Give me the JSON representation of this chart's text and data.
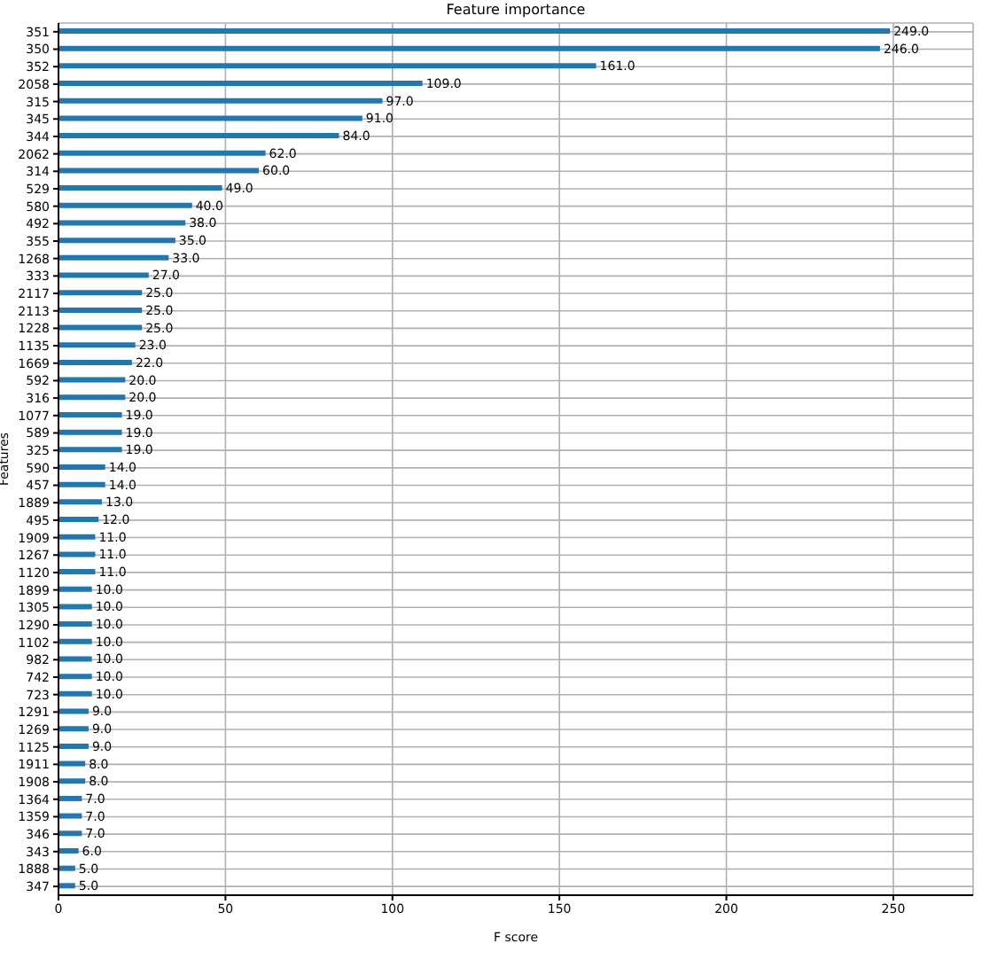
{
  "chart_data": {
    "type": "bar",
    "orientation": "horizontal",
    "title": "Feature importance",
    "xlabel": "F score",
    "ylabel": "Features",
    "categories": [
      "351",
      "350",
      "352",
      "2058",
      "315",
      "345",
      "344",
      "2062",
      "314",
      "529",
      "580",
      "492",
      "355",
      "1268",
      "333",
      "2117",
      "2113",
      "1228",
      "1135",
      "1669",
      "592",
      "316",
      "1077",
      "589",
      "325",
      "590",
      "457",
      "1889",
      "495",
      "1909",
      "1267",
      "1120",
      "1899",
      "1305",
      "1290",
      "1102",
      "982",
      "742",
      "723",
      "1291",
      "1269",
      "1125",
      "1911",
      "1908",
      "1364",
      "1359",
      "346",
      "343",
      "1888",
      "347"
    ],
    "values": [
      249,
      246,
      161,
      109,
      97,
      91,
      84,
      62,
      60,
      49,
      40,
      38,
      35,
      33,
      27,
      25,
      25,
      25,
      23,
      22,
      20,
      20,
      19,
      19,
      19,
      14,
      14,
      13,
      12,
      11,
      11,
      11,
      10,
      10,
      10,
      10,
      10,
      10,
      10,
      9,
      9,
      9,
      8,
      8,
      7,
      7,
      7,
      6,
      5,
      5
    ],
    "value_labels": [
      "249.0",
      "246.0",
      "161.0",
      "109.0",
      "97.0",
      "91.0",
      "84.0",
      "62.0",
      "60.0",
      "49.0",
      "40.0",
      "38.0",
      "35.0",
      "33.0",
      "27.0",
      "25.0",
      "25.0",
      "25.0",
      "23.0",
      "22.0",
      "20.0",
      "20.0",
      "19.0",
      "19.0",
      "19.0",
      "14.0",
      "14.0",
      "13.0",
      "12.0",
      "11.0",
      "11.0",
      "11.0",
      "10.0",
      "10.0",
      "10.0",
      "10.0",
      "10.0",
      "10.0",
      "10.0",
      "9.0",
      "9.0",
      "9.0",
      "8.0",
      "8.0",
      "7.0",
      "7.0",
      "7.0",
      "6.0",
      "5.0",
      "5.0"
    ],
    "color": "#1f77b4",
    "xlim": [
      0,
      273.9
    ],
    "xticks": [
      0,
      50,
      100,
      150,
      200,
      250
    ],
    "grid": true,
    "legend": false
  }
}
